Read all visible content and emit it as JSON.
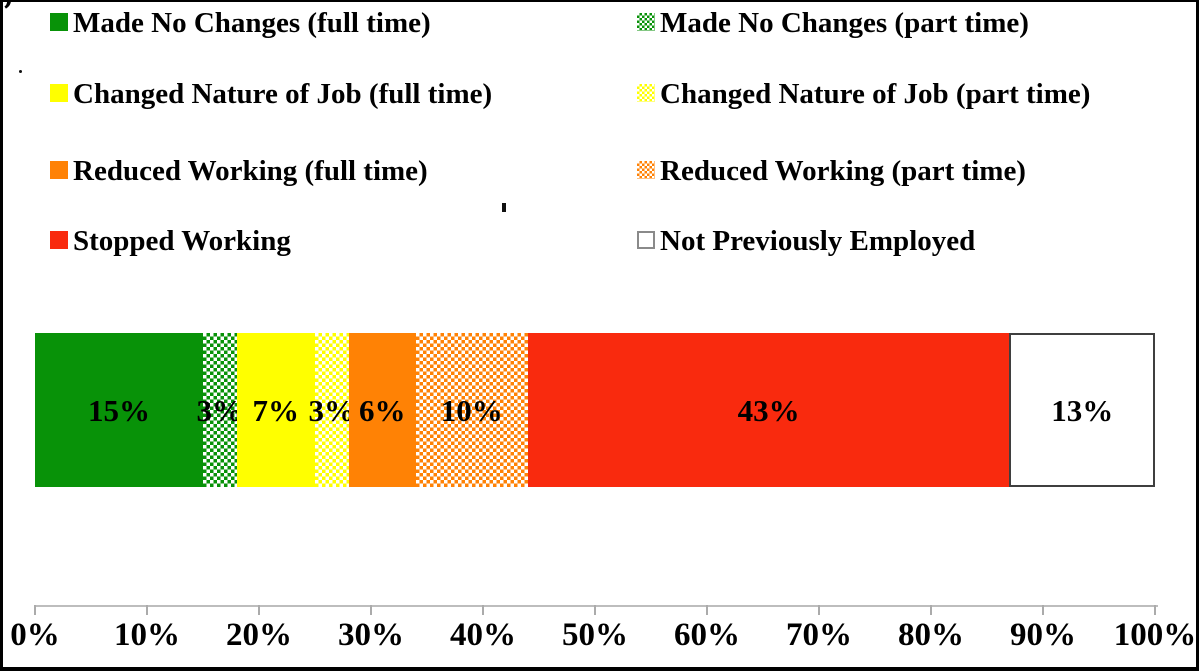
{
  "chart_data": {
    "type": "bar",
    "subtype": "horizontal-stacked-100pct",
    "title": "",
    "xlabel": "",
    "ylabel": "",
    "grid": false,
    "legend_position": "top",
    "x_axis": {
      "range": [
        0,
        100
      ],
      "tick_step": 10,
      "tick_labels": [
        "0%",
        "10%",
        "20%",
        "30%",
        "40%",
        "50%",
        "60%",
        "70%",
        "80%",
        "90%",
        "100%"
      ]
    },
    "series": [
      {
        "name": "Made No Changes (full time)",
        "value": 15,
        "label": "15%",
        "color": "#089208",
        "pattern": "solid"
      },
      {
        "name": "Made No Changes (part time)",
        "value": 3,
        "label": "3%",
        "color": "#089208",
        "pattern": "checker"
      },
      {
        "name": "Changed Nature of Job (full time)",
        "value": 7,
        "label": "7%",
        "color": "#ffff00",
        "pattern": "solid"
      },
      {
        "name": "Changed Nature of Job (part time)",
        "value": 3,
        "label": "3%",
        "color": "#ffff00",
        "pattern": "checker"
      },
      {
        "name": "Reduced Working (full time)",
        "value": 6,
        "label": "6%",
        "color": "#ff8205",
        "pattern": "solid"
      },
      {
        "name": "Reduced Working (part time)",
        "value": 10,
        "label": "10%",
        "color": "#ff8205",
        "pattern": "checker"
      },
      {
        "name": "Stopped Working",
        "value": 43,
        "label": "43%",
        "color": "#f92a0e",
        "pattern": "solid"
      },
      {
        "name": "Not Previously Employed",
        "value": 13,
        "label": "13%",
        "color": "#ffffff",
        "pattern": "outlined"
      }
    ],
    "colors": {
      "axis_line": "#bdbdbd",
      "text": "#000000",
      "background": "#ffffff"
    }
  }
}
